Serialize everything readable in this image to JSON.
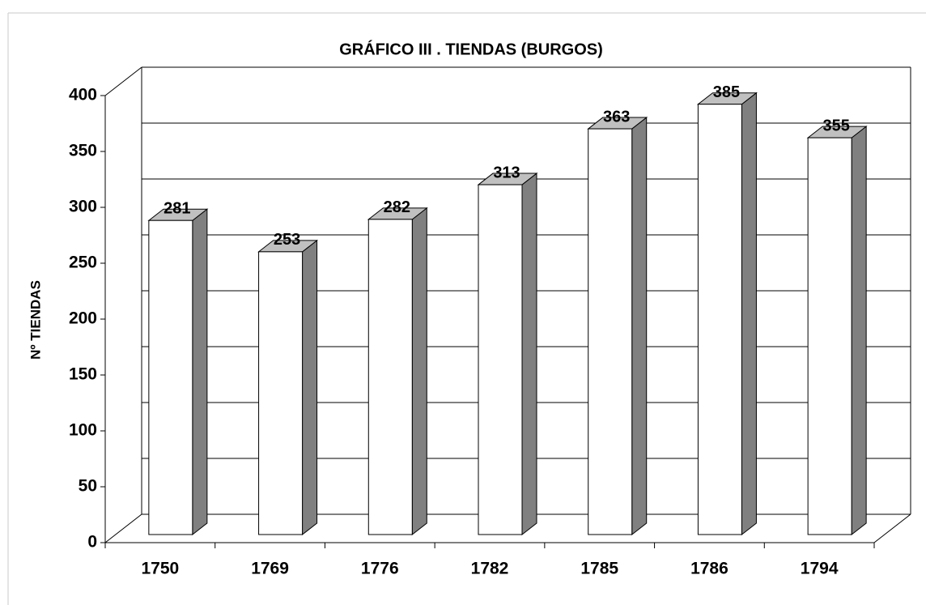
{
  "chart_data": {
    "type": "bar3d",
    "title": "GRÁFICO III . TIENDAS (BURGOS)",
    "y_label": "Nº TIENDAS",
    "categories": [
      "1750",
      "1769",
      "1776",
      "1782",
      "1785",
      "1786",
      "1794"
    ],
    "values": [
      281,
      253,
      282,
      313,
      363,
      385,
      355
    ],
    "color": "#ffffff",
    "side_color": "#808080",
    "top_color": "#c0c0c0",
    "ylim": [
      0,
      400
    ],
    "yticks": [
      0,
      50,
      100,
      150,
      200,
      250,
      300,
      350,
      400
    ],
    "grid": true
  }
}
